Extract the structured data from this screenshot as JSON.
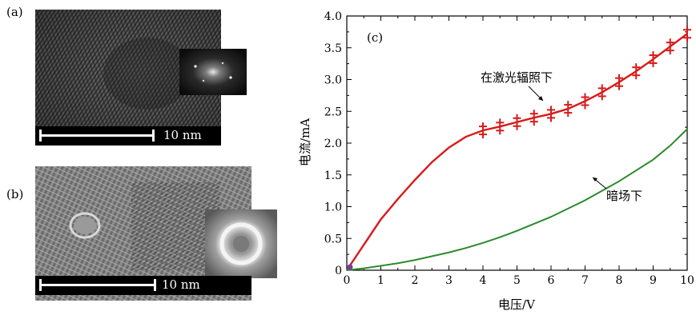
{
  "figure": {
    "panel_a_label": "(a)",
    "panel_b_label": "(b)",
    "scale_bar_a": "10 nm",
    "scale_bar_b": "10 nm"
  },
  "chart_data": {
    "type": "line",
    "panel_label": "(c)",
    "xlabel": "电压/V",
    "ylabel": "电流/mA",
    "xlim": [
      0,
      10
    ],
    "ylim": [
      0,
      4.0
    ],
    "x_ticks": [
      "0",
      "1",
      "2",
      "3",
      "4",
      "5",
      "6",
      "7",
      "8",
      "9",
      "10"
    ],
    "y_ticks": [
      "0",
      "0.5",
      "1.0",
      "1.5",
      "2.0",
      "2.5",
      "3.0",
      "3.5",
      "4.0"
    ],
    "annotations": [
      {
        "text": "在激光辐照下",
        "series": "laser"
      },
      {
        "text": "暗场下",
        "series": "dark"
      }
    ],
    "series": [
      {
        "id": "laser",
        "color": "#d81a1a",
        "x": [
          0,
          0.5,
          1,
          1.5,
          2,
          2.5,
          3,
          3.5,
          4,
          4.5,
          5,
          5.5,
          6,
          6.5,
          7,
          7.5,
          8,
          8.5,
          9,
          9.5,
          10
        ],
        "y": [
          0,
          0.4,
          0.8,
          1.12,
          1.42,
          1.7,
          1.93,
          2.1,
          2.2,
          2.26,
          2.33,
          2.4,
          2.46,
          2.54,
          2.66,
          2.8,
          2.96,
          3.13,
          3.32,
          3.52,
          3.72
        ]
      },
      {
        "id": "dark",
        "color": "#2a8a2a",
        "x": [
          0,
          0.5,
          1,
          1.5,
          2,
          2.5,
          3,
          3.5,
          4,
          4.5,
          5,
          5.5,
          6,
          6.5,
          7,
          7.5,
          8,
          8.5,
          9,
          9.5,
          10
        ],
        "y": [
          0,
          0.03,
          0.07,
          0.11,
          0.16,
          0.22,
          0.28,
          0.35,
          0.43,
          0.52,
          0.62,
          0.73,
          0.84,
          0.97,
          1.1,
          1.25,
          1.4,
          1.57,
          1.74,
          1.96,
          2.22
        ]
      }
    ]
  }
}
